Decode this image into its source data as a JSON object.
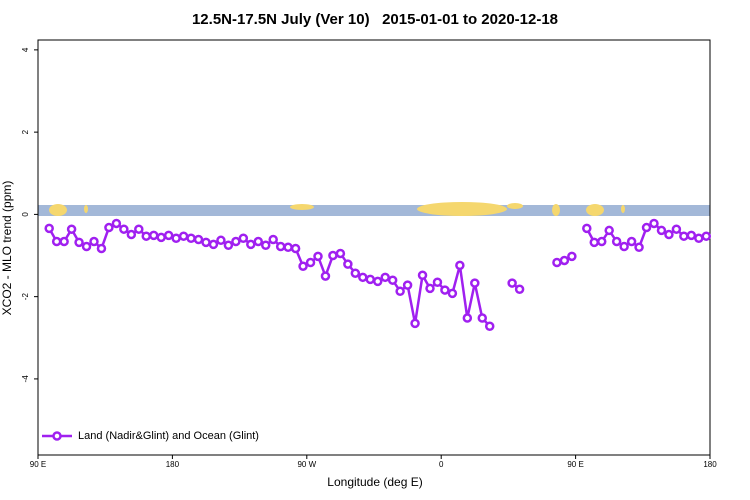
{
  "chart_data": {
    "type": "line",
    "title": "12.5N-17.5N July (Ver 10)   2015-01-01 to 2020-12-18",
    "x_label": "Longitude (deg E)",
    "y_label": "XCO2 - MLO trend (ppm)",
    "x": [
      97.5,
      102.5,
      107.5,
      112.5,
      117.5,
      122.5,
      127.5,
      132.5,
      137.5,
      142.5,
      147.5,
      152.5,
      157.5,
      162.5,
      167.5,
      172.5,
      177.5,
      182.5,
      187.5,
      192.5,
      197.5,
      202.5,
      207.5,
      212.5,
      217.5,
      222.5,
      227.5,
      232.5,
      237.5,
      242.5,
      247.5,
      252.5,
      257.5,
      262.5,
      267.5,
      272.5,
      277.5,
      282.5,
      287.5,
      292.5,
      297.5,
      302.5,
      307.5,
      312.5,
      317.5,
      322.5,
      327.5,
      332.5,
      337.5,
      342.5,
      347.5,
      352.5,
      357.5,
      362.5,
      367.5,
      372.5,
      377.5,
      382.5,
      387.5,
      392.5,
      397.5,
      402.5,
      407.5,
      412.5,
      417.5,
      422.5,
      427.5,
      432.5,
      437.5,
      442.5,
      447.5,
      452.5,
      457.5,
      462.5,
      467.5,
      472.5,
      477.5,
      482.5,
      487.5,
      492.5,
      497.5,
      502.5,
      507.5,
      512.5,
      517.5,
      522.5,
      527.5,
      532.5,
      537.5
    ],
    "series": [
      {
        "name": "Land (Nadir&Glint) and Ocean (Glint)",
        "color": "#a020f0",
        "values": [
          -0.34,
          -0.66,
          -0.66,
          -0.36,
          -0.68,
          -0.78,
          -0.66,
          -0.83,
          -0.32,
          -0.22,
          -0.36,
          -0.49,
          -0.36,
          -0.53,
          -0.51,
          -0.56,
          -0.51,
          -0.58,
          -0.53,
          -0.58,
          -0.61,
          -0.68,
          -0.73,
          -0.63,
          -0.75,
          -0.66,
          -0.58,
          -0.73,
          -0.66,
          -0.75,
          -0.61,
          -0.78,
          -0.8,
          -0.83,
          -1.26,
          -1.17,
          -1.02,
          -1.5,
          -1.0,
          -0.95,
          -1.21,
          -1.43,
          -1.53,
          -1.58,
          -1.63,
          -1.53,
          -1.6,
          -1.87,
          -1.72,
          -2.65,
          -1.48,
          -1.8,
          -1.65,
          -1.84,
          -1.92,
          -1.24,
          -2.52,
          -1.67,
          -2.52,
          -2.72,
          null,
          null,
          -1.67,
          -1.82,
          null,
          null,
          null,
          null,
          -1.17,
          -1.12,
          -1.02,
          null,
          -0.34,
          -0.68,
          -0.66,
          -0.39,
          -0.66,
          -0.78,
          -0.66,
          -0.8,
          -0.32,
          -0.22,
          -0.39,
          -0.49,
          -0.36,
          -0.53,
          -0.51,
          -0.58,
          -0.53
        ]
      }
    ],
    "xlim": [
      90,
      540
    ],
    "xticks": [
      {
        "value": 90,
        "label": "90 E"
      },
      180,
      {
        "value": 270,
        "label": "90 W"
      },
      {
        "value": 360,
        "label": "0"
      },
      {
        "value": 450,
        "label": "90 E"
      },
      {
        "value": 540,
        "label": "180"
      }
    ],
    "ylim": [
      -5.85,
      4.24
    ],
    "yticks": [
      4,
      2,
      0,
      -2,
      -4
    ],
    "legend": "bottom-left"
  }
}
